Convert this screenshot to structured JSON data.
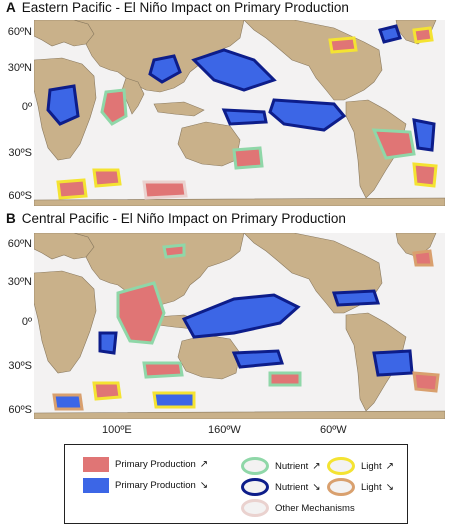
{
  "panels": [
    {
      "letter": "A",
      "title": "Eastern Pacific - El Niño Impact on Primary Production"
    },
    {
      "letter": "B",
      "title": "Central Pacific - El Niño Impact on Primary Production"
    }
  ],
  "lat_labels": [
    "60ºN",
    "30ºN",
    "0º",
    "30ºS",
    "60ºS"
  ],
  "lon_labels": [
    "100ºE",
    "160ºW",
    "60ºW"
  ],
  "legend": {
    "pp_up": "Primary Production",
    "pp_down": "Primary Production",
    "nutrient_up": "Nutrient",
    "nutrient_down": "Nutrient",
    "light_up": "Light",
    "light_down": "Light",
    "other": "Other Mechanisms",
    "arrow_up": "↗",
    "arrow_down": "↘"
  },
  "colors": {
    "land": "#c9b18a",
    "ocean": "#f3f2f2",
    "pp_increase": "#e07575",
    "pp_decrease": "#3c66e6",
    "nutrient_increase": "#8fd7a8",
    "nutrient_decrease": "#0d1d8a",
    "light_increase": "#f4e332",
    "light_decrease": "#d9a06e",
    "other_mechanisms": "#ead2cf"
  }
}
